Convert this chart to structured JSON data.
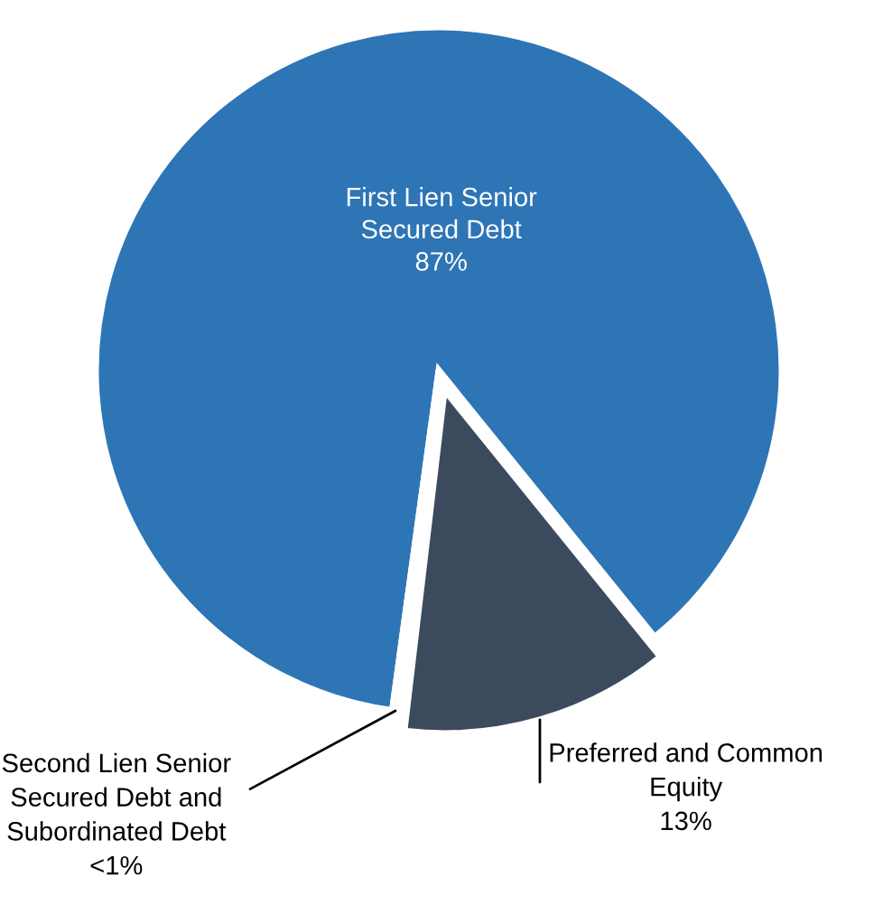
{
  "chart_data": {
    "type": "pie",
    "categories": [
      "First Lien Senior\nSecured Debt",
      "Second Lien Senior\nSecured Debt and\nSubordinated Debt",
      "Preferred and Common\nEquity"
    ],
    "values": [
      87,
      0.3,
      12.7
    ],
    "value_labels": [
      "87%",
      "<1%",
      "13%"
    ],
    "colors": [
      "#2e75b6",
      "#a5a5a5",
      "#3c4a5d"
    ],
    "legend": false
  }
}
